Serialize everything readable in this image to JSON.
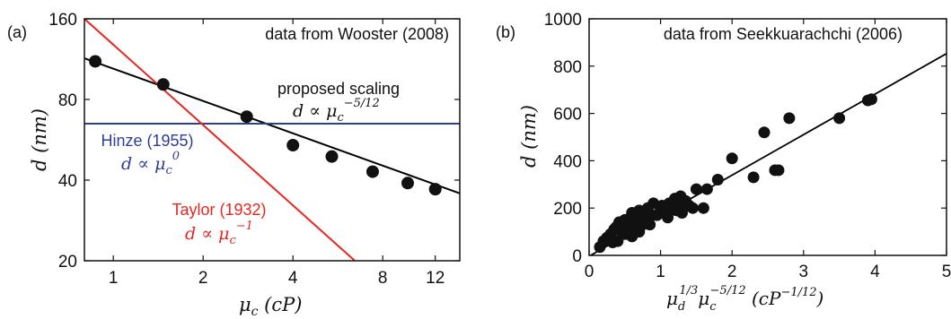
{
  "chart_data": [
    {
      "panel_label": "(a)",
      "type": "scatter",
      "x_scale": "log",
      "y_scale": "log",
      "xlim": [
        0.8,
        14.5
      ],
      "ylim": [
        20,
        160
      ],
      "xticks": [
        1,
        2,
        4,
        8,
        12
      ],
      "yticks": [
        20,
        40,
        80,
        160
      ],
      "xlabel": "μc (cP)",
      "ylabel": "d (nm)",
      "annotation": "data from Wooster (2008)",
      "series": [
        {
          "name": "data",
          "x": [
            0.87,
            1.47,
            2.8,
            4.0,
            5.4,
            7.4,
            9.7,
            12.0
          ],
          "y": [
            111,
            91,
            69,
            54,
            49,
            43,
            39,
            37
          ]
        },
        {
          "name": "proposed scaling",
          "relation": "d ∝ μc^(-5/12)",
          "color": "#000000",
          "x": [
            0.8,
            14.5
          ],
          "y": [
            114,
            35.7
          ]
        },
        {
          "name": "Hinze (1955)",
          "relation": "d ∝ μc^0",
          "color": "#2f3d99",
          "x": [
            0.8,
            14.5
          ],
          "y": [
            65,
            65
          ]
        },
        {
          "name": "Taylor (1932)",
          "relation": "d ∝ μc^-1",
          "color": "#e8261e",
          "x": [
            0.8,
            6.45
          ],
          "y": [
            160,
            20
          ]
        }
      ]
    },
    {
      "panel_label": "(b)",
      "type": "scatter",
      "xlim": [
        0,
        5
      ],
      "ylim": [
        0,
        1000
      ],
      "xticks": [
        0,
        1,
        2,
        3,
        4,
        5
      ],
      "yticks": [
        0,
        200,
        400,
        600,
        800,
        1000
      ],
      "xlabel": "μd^(1/3) μc^(-5/12) (cP^(-1/12))",
      "ylabel": "d (nm)",
      "annotation": "data from Seekkuarachchi (2006)",
      "series": [
        {
          "name": "data",
          "x": [
            0.15,
            0.2,
            0.25,
            0.3,
            0.33,
            0.35,
            0.38,
            0.4,
            0.42,
            0.45,
            0.48,
            0.5,
            0.5,
            0.55,
            0.58,
            0.6,
            0.6,
            0.62,
            0.65,
            0.68,
            0.7,
            0.7,
            0.72,
            0.75,
            0.78,
            0.8,
            0.82,
            0.85,
            0.88,
            0.9,
            0.95,
            1.0,
            1.02,
            1.05,
            1.1,
            1.12,
            1.15,
            1.2,
            1.22,
            1.25,
            1.28,
            1.3,
            1.35,
            1.4,
            1.45,
            1.5,
            1.6,
            1.65,
            1.8,
            2.0,
            2.3,
            2.45,
            2.6,
            2.65,
            2.8,
            3.5,
            3.9,
            3.95
          ],
          "y": [
            35,
            60,
            75,
            90,
            55,
            110,
            120,
            60,
            140,
            100,
            130,
            150,
            90,
            110,
            160,
            80,
            180,
            140,
            120,
            170,
            100,
            190,
            150,
            130,
            180,
            160,
            200,
            130,
            170,
            220,
            170,
            190,
            210,
            180,
            160,
            220,
            200,
            240,
            190,
            210,
            250,
            180,
            230,
            210,
            200,
            280,
            200,
            280,
            320,
            410,
            330,
            520,
            360,
            360,
            580,
            580,
            655,
            660
          ]
        },
        {
          "name": "fit",
          "color": "#000000",
          "x": [
            0.02,
            5.0
          ],
          "y": [
            0,
            853
          ]
        }
      ]
    }
  ],
  "ui": {
    "a": {
      "panel_label": "(a)",
      "annotation": "data from Wooster (2008)",
      "proposed_label": "proposed scaling",
      "proposed_base": "d ∝ μ",
      "proposed_sub": "c",
      "proposed_sup": "−5/12",
      "hinze_label": "Hinze (1955)",
      "hinze_base": "d ∝ μ",
      "hinze_sub": "c",
      "hinze_sup": "0",
      "taylor_label": "Taylor (1932)",
      "taylor_base": "d ∝ μ",
      "taylor_sub": "c",
      "taylor_sup": "−1",
      "xlabel_base": "μ",
      "xlabel_sub": "c",
      "xlabel_unit": " (cP)",
      "ylabel": "d (nm)"
    },
    "b": {
      "panel_label": "(b)",
      "annotation": "data from Seekkuarachchi (2006)",
      "xlabel_mu1": "μ",
      "xlabel_sub1": "d",
      "xlabel_sup1": "1/3",
      "xlabel_mu2": "μ",
      "xlabel_sub2": "c",
      "xlabel_sup2": "−5/12",
      "xlabel_unit_open": " (cP",
      "xlabel_unit_sup": "−1/12",
      "xlabel_unit_close": ")",
      "ylabel": "d (nm)"
    },
    "colors": {
      "proposed": "#000000",
      "hinze": "#2f3d99",
      "taylor": "#e8261e"
    }
  }
}
